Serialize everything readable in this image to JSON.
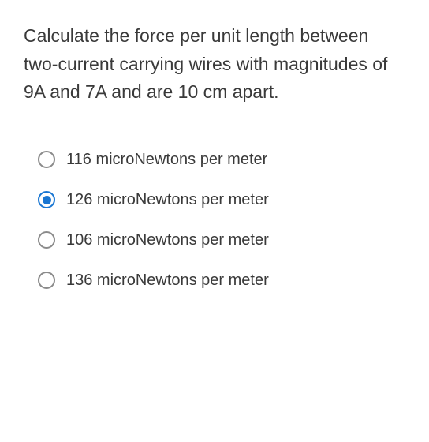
{
  "question": {
    "text": "Calculate the force per unit length between two-current carrying wires with magnitudes of 9A and 7A and are 10 cm apart."
  },
  "options": [
    {
      "label": "116 microNewtons per meter",
      "selected": false
    },
    {
      "label": "126 microNewtons per meter",
      "selected": true
    },
    {
      "label": "106 microNewtons per meter",
      "selected": false
    },
    {
      "label": "136 microNewtons per meter",
      "selected": false
    }
  ],
  "colors": {
    "text": "#3a3a3a",
    "radio_border": "#8a8a8a",
    "radio_selected": "#1976d2",
    "background": "#ffffff"
  }
}
